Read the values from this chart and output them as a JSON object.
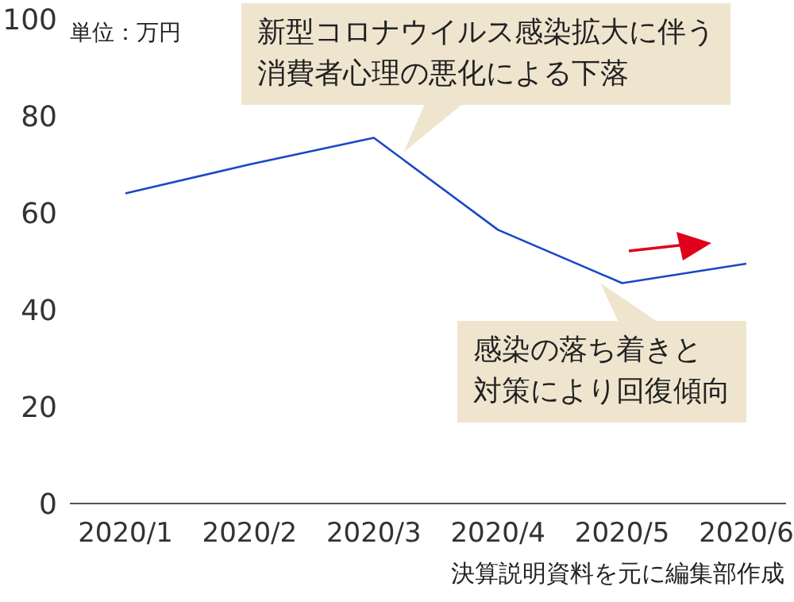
{
  "chart_data": {
    "type": "line",
    "categories": [
      "2020/1",
      "2020/2",
      "2020/3",
      "2020/4",
      "2020/5",
      "2020/6"
    ],
    "values": [
      64,
      70,
      75.5,
      56.5,
      45.5,
      49.5
    ],
    "color": "#1a47c8",
    "marker": "none",
    "ylim": [
      0,
      100
    ],
    "yticks": [
      0,
      20,
      40,
      60,
      80,
      100
    ],
    "annotations": [
      "単位：万円",
      "新型コロナウイルス感染拡大に伴う",
      "消費者心理の悪化による下落",
      "感染の落ち着きと",
      "対策により回復傾向",
      "決算説明資料を元に編集部作成"
    ]
  }
}
